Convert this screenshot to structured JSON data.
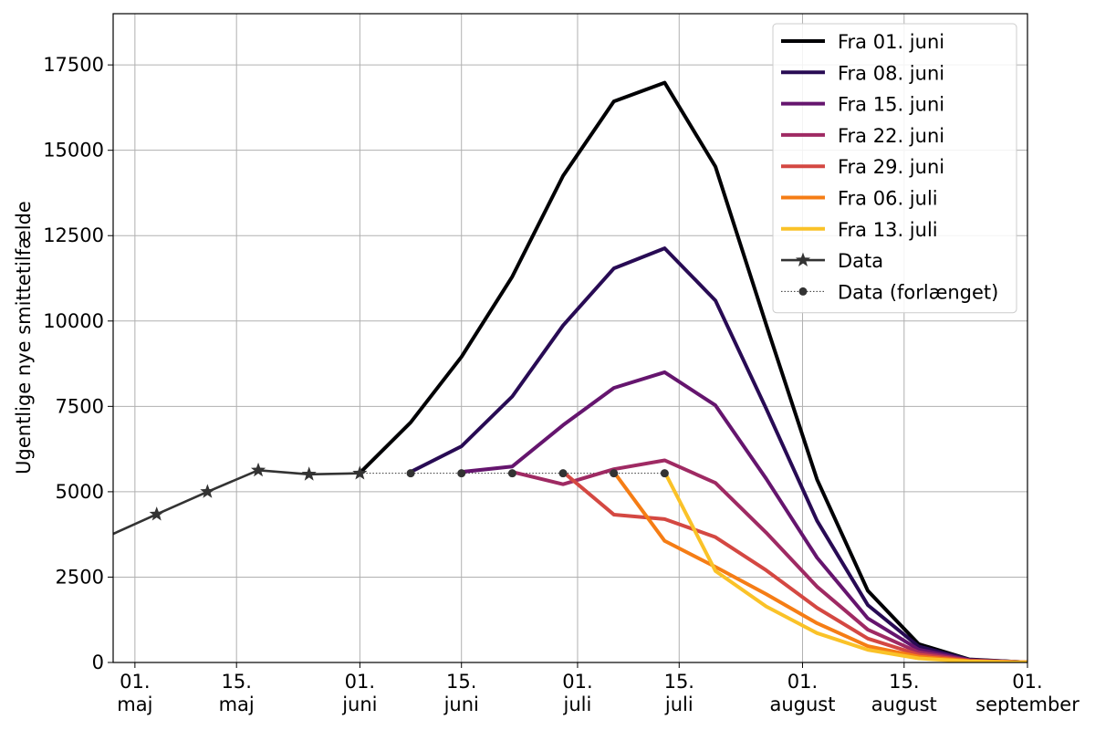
{
  "chart_data": {
    "type": "line",
    "ylabel": "Ugentlige nye smittetilfælde",
    "ylim": [
      0,
      19000
    ],
    "xlim": [
      "2021-04-28",
      "2021-09-01"
    ],
    "grid": true,
    "legend_placement": "top-right",
    "yticks": [
      0,
      2500,
      5000,
      7500,
      10000,
      12500,
      15000,
      17500
    ],
    "xticks": [
      {
        "date": "2021-05-01",
        "line1": "01.",
        "line2": "maj"
      },
      {
        "date": "2021-05-15",
        "line1": "15.",
        "line2": "maj"
      },
      {
        "date": "2021-06-01",
        "line1": "01.",
        "line2": "juni"
      },
      {
        "date": "2021-06-15",
        "line1": "15.",
        "line2": "juni"
      },
      {
        "date": "2021-07-01",
        "line1": "01.",
        "line2": "juli"
      },
      {
        "date": "2021-07-15",
        "line1": "15.",
        "line2": "juli"
      },
      {
        "date": "2021-08-01",
        "line1": "01.",
        "line2": "august"
      },
      {
        "date": "2021-08-15",
        "line1": "15.",
        "line2": "august"
      },
      {
        "date": "2021-09-01",
        "line1": "01.",
        "line2": "september"
      }
    ],
    "series": [
      {
        "name": "Fra 01. juni",
        "color": "#000004",
        "x": [
          "2021-06-01",
          "2021-06-08",
          "2021-06-15",
          "2021-06-22",
          "2021-06-29",
          "2021-07-06",
          "2021-07-13",
          "2021-07-20",
          "2021-07-27",
          "2021-08-03",
          "2021-08-10",
          "2021-08-17",
          "2021-08-24",
          "2021-08-31",
          "2021-09-07"
        ],
        "y": [
          5550,
          7030,
          8950,
          11300,
          14250,
          16430,
          16980,
          14520,
          9890,
          5360,
          2100,
          540,
          90,
          15,
          0
        ]
      },
      {
        "name": "Fra 08. juni",
        "color": "#280b54",
        "x": [
          "2021-06-08",
          "2021-06-15",
          "2021-06-22",
          "2021-06-29",
          "2021-07-06",
          "2021-07-13",
          "2021-07-20",
          "2021-07-27",
          "2021-08-03",
          "2021-08-10",
          "2021-08-17",
          "2021-08-24",
          "2021-08-31",
          "2021-09-07"
        ],
        "y": [
          5580,
          6330,
          7790,
          9870,
          11540,
          12130,
          10600,
          7430,
          4150,
          1680,
          470,
          80,
          15,
          0
        ]
      },
      {
        "name": "Fra 15. juni",
        "color": "#65156e",
        "x": [
          "2021-06-15",
          "2021-06-22",
          "2021-06-29",
          "2021-07-06",
          "2021-07-13",
          "2021-07-20",
          "2021-07-27",
          "2021-08-03",
          "2021-08-10",
          "2021-08-17",
          "2021-08-24",
          "2021-08-31",
          "2021-09-07"
        ],
        "y": [
          5580,
          5740,
          6950,
          8040,
          8500,
          7530,
          5380,
          3070,
          1290,
          380,
          70,
          15,
          0
        ]
      },
      {
        "name": "Fra 22. juni",
        "color": "#9f2a63",
        "x": [
          "2021-06-22",
          "2021-06-29",
          "2021-07-06",
          "2021-07-13",
          "2021-07-20",
          "2021-07-27",
          "2021-08-03",
          "2021-08-10",
          "2021-08-17",
          "2021-08-24",
          "2021-08-31",
          "2021-09-07"
        ],
        "y": [
          5580,
          5220,
          5660,
          5920,
          5260,
          3800,
          2220,
          960,
          300,
          60,
          10,
          0
        ]
      },
      {
        "name": "Fra 29. juni",
        "color": "#d44842",
        "x": [
          "2021-06-29",
          "2021-07-06",
          "2021-07-13",
          "2021-07-20",
          "2021-07-27",
          "2021-08-03",
          "2021-08-10",
          "2021-08-17",
          "2021-08-24",
          "2021-08-31",
          "2021-09-07"
        ],
        "y": [
          5580,
          4330,
          4200,
          3670,
          2700,
          1600,
          700,
          230,
          50,
          10,
          0
        ]
      },
      {
        "name": "Fra 06. juli",
        "color": "#f57d15",
        "x": [
          "2021-07-06",
          "2021-07-13",
          "2021-07-20",
          "2021-07-27",
          "2021-08-03",
          "2021-08-10",
          "2021-08-17",
          "2021-08-24",
          "2021-08-31",
          "2021-09-07"
        ],
        "y": [
          5580,
          3560,
          2800,
          2000,
          1150,
          480,
          170,
          40,
          10,
          0
        ]
      },
      {
        "name": "Fra 13. juli",
        "color": "#fac228",
        "x": [
          "2021-07-13",
          "2021-07-20",
          "2021-07-27",
          "2021-08-03",
          "2021-08-10",
          "2021-08-17",
          "2021-08-24",
          "2021-08-31",
          "2021-09-07"
        ],
        "y": [
          5580,
          2680,
          1640,
          860,
          370,
          120,
          30,
          5,
          0
        ]
      }
    ],
    "data": {
      "name": "Data",
      "color": "#333333",
      "x": [
        "2021-04-27",
        "2021-05-04",
        "2021-05-11",
        "2021-05-18",
        "2021-05-25",
        "2021-06-01"
      ],
      "y": [
        3670,
        4340,
        5000,
        5630,
        5510,
        5540
      ]
    },
    "data_extended": {
      "name": "Data (forlænget)",
      "color": "#333333",
      "x": [
        "2021-06-01",
        "2021-06-08",
        "2021-06-15",
        "2021-06-22",
        "2021-06-29",
        "2021-07-06",
        "2021-07-13"
      ],
      "y": [
        5540,
        5540,
        5540,
        5540,
        5540,
        5540,
        5540
      ]
    }
  }
}
